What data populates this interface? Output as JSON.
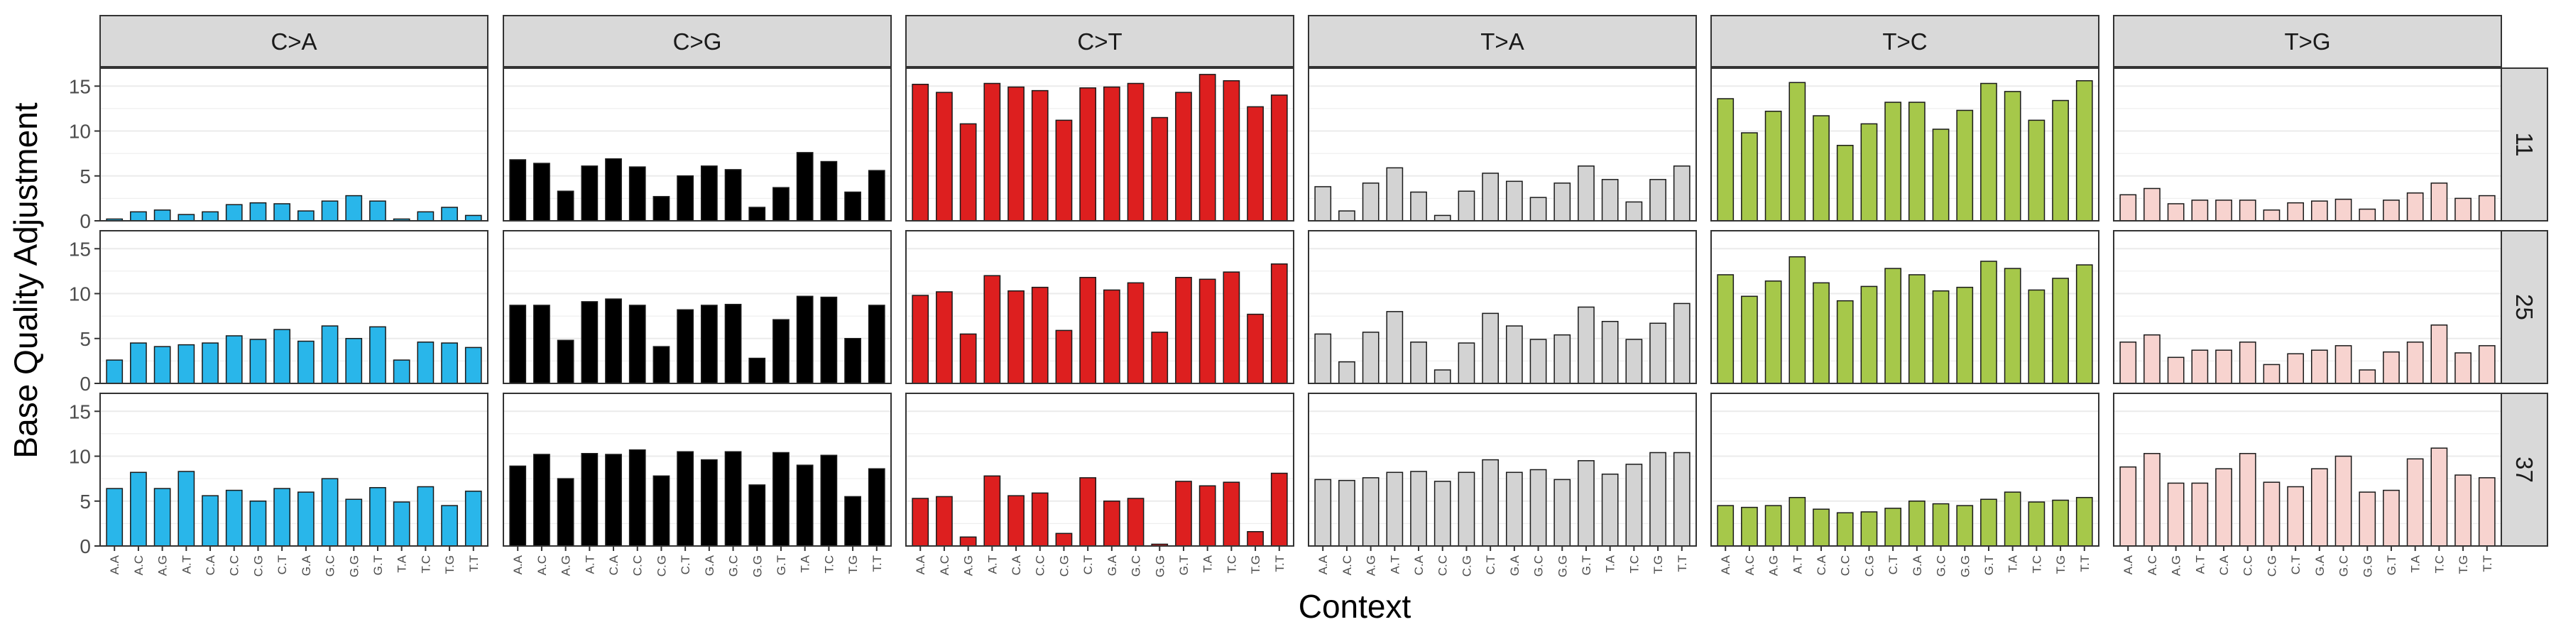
{
  "chart_data": {
    "type": "bar",
    "ylabel": "Base Quality Adjustment",
    "xlabel": "Context",
    "columns": [
      "C>A",
      "C>G",
      "C>T",
      "T>A",
      "T>C",
      "T>G"
    ],
    "rows": [
      "11",
      "25",
      "37"
    ],
    "categories": [
      "A.A",
      "A.C",
      "A.G",
      "A.T",
      "C.A",
      "C.C",
      "C.G",
      "C.T",
      "G.A",
      "G.C",
      "G.G",
      "G.T",
      "T.A",
      "T.C",
      "T.G",
      "T.T"
    ],
    "ylim": [
      0,
      17
    ],
    "yticks": [
      0,
      5,
      10,
      15
    ],
    "grid": true,
    "colors": {
      "C>A": "#29b6ea",
      "C>G": "#000000",
      "C>T": "#dd1f1f",
      "T>A": "#d3d3d3",
      "T>C": "#a6c84a",
      "T>G": "#f7d3cf"
    },
    "panels": [
      {
        "row": "11",
        "col": "C>A",
        "values": [
          0.2,
          1.0,
          1.2,
          0.7,
          1.0,
          1.8,
          2.0,
          1.9,
          1.1,
          2.2,
          2.8,
          2.2,
          0.2,
          1.0,
          1.5,
          0.6
        ]
      },
      {
        "row": "11",
        "col": "C>G",
        "values": [
          6.8,
          6.4,
          3.3,
          6.1,
          6.9,
          6.0,
          2.7,
          5.0,
          6.1,
          5.7,
          1.5,
          3.7,
          7.6,
          6.6,
          3.2,
          5.6
        ]
      },
      {
        "row": "11",
        "col": "C>T",
        "values": [
          15.2,
          14.3,
          10.8,
          15.3,
          14.9,
          14.5,
          11.2,
          14.8,
          14.9,
          15.3,
          11.5,
          14.3,
          16.3,
          15.6,
          12.7,
          14.0
        ]
      },
      {
        "row": "11",
        "col": "T>A",
        "values": [
          3.8,
          1.1,
          4.2,
          5.9,
          3.2,
          0.6,
          3.3,
          5.3,
          4.4,
          2.6,
          4.2,
          6.1,
          4.6,
          2.1,
          4.6,
          6.1
        ]
      },
      {
        "row": "11",
        "col": "T>C",
        "values": [
          13.6,
          9.8,
          12.2,
          15.4,
          11.7,
          8.4,
          10.8,
          13.2,
          13.2,
          10.2,
          12.3,
          15.3,
          14.4,
          11.2,
          13.4,
          15.6
        ]
      },
      {
        "row": "11",
        "col": "T>G",
        "values": [
          2.9,
          3.6,
          1.9,
          2.3,
          2.3,
          2.3,
          1.2,
          2.0,
          2.2,
          2.4,
          1.3,
          2.3,
          3.1,
          4.2,
          2.5,
          2.8
        ]
      },
      {
        "row": "25",
        "col": "C>A",
        "values": [
          2.6,
          4.5,
          4.1,
          4.3,
          4.5,
          5.3,
          4.9,
          6.0,
          4.7,
          6.4,
          5.0,
          6.3,
          2.6,
          4.6,
          4.5,
          4.0
        ]
      },
      {
        "row": "25",
        "col": "C>G",
        "values": [
          8.7,
          8.7,
          4.8,
          9.1,
          9.4,
          8.7,
          4.1,
          8.2,
          8.7,
          8.8,
          2.8,
          7.1,
          9.7,
          9.6,
          5.0,
          8.7
        ]
      },
      {
        "row": "25",
        "col": "C>T",
        "values": [
          9.8,
          10.2,
          5.5,
          12.0,
          10.3,
          10.7,
          5.9,
          11.8,
          10.4,
          11.2,
          5.7,
          11.8,
          11.6,
          12.4,
          7.7,
          13.3
        ]
      },
      {
        "row": "25",
        "col": "T>A",
        "values": [
          5.5,
          2.4,
          5.7,
          8.0,
          4.6,
          1.5,
          4.5,
          7.8,
          6.4,
          4.9,
          5.4,
          8.5,
          6.9,
          4.9,
          6.7,
          8.9
        ]
      },
      {
        "row": "25",
        "col": "T>C",
        "values": [
          12.1,
          9.7,
          11.4,
          14.1,
          11.2,
          9.2,
          10.8,
          12.8,
          12.1,
          10.3,
          10.7,
          13.6,
          12.8,
          10.4,
          11.7,
          13.2
        ]
      },
      {
        "row": "25",
        "col": "T>G",
        "values": [
          4.6,
          5.4,
          2.9,
          3.7,
          3.7,
          4.6,
          2.1,
          3.3,
          3.7,
          4.2,
          1.5,
          3.5,
          4.6,
          6.5,
          3.4,
          4.2
        ]
      },
      {
        "row": "37",
        "col": "C>A",
        "values": [
          6.4,
          8.2,
          6.4,
          8.3,
          5.6,
          6.2,
          5.0,
          6.4,
          6.0,
          7.5,
          5.2,
          6.5,
          4.9,
          6.6,
          4.5,
          6.1
        ]
      },
      {
        "row": "37",
        "col": "C>G",
        "values": [
          8.9,
          10.2,
          7.5,
          10.3,
          10.2,
          10.7,
          7.8,
          10.5,
          9.6,
          10.5,
          6.8,
          10.4,
          9.0,
          10.1,
          5.5,
          8.6
        ]
      },
      {
        "row": "37",
        "col": "C>T",
        "values": [
          5.3,
          5.5,
          1.0,
          7.8,
          5.6,
          5.9,
          1.4,
          7.6,
          5.0,
          5.3,
          0.2,
          7.2,
          6.7,
          7.1,
          1.6,
          8.1
        ]
      },
      {
        "row": "37",
        "col": "T>A",
        "values": [
          7.4,
          7.3,
          7.6,
          8.2,
          8.3,
          7.2,
          8.2,
          9.6,
          8.2,
          8.5,
          7.4,
          9.5,
          8.0,
          9.1,
          10.4,
          10.4
        ]
      },
      {
        "row": "37",
        "col": "T>C",
        "values": [
          4.5,
          4.3,
          4.5,
          5.4,
          4.1,
          3.7,
          3.8,
          4.2,
          5.0,
          4.7,
          4.5,
          5.2,
          6.0,
          4.9,
          5.1,
          5.4
        ]
      },
      {
        "row": "37",
        "col": "T>G",
        "values": [
          8.8,
          10.3,
          7.0,
          7.0,
          8.6,
          10.3,
          7.1,
          6.6,
          8.6,
          10.0,
          6.0,
          6.2,
          9.7,
          10.9,
          7.9,
          7.6
        ]
      }
    ]
  }
}
